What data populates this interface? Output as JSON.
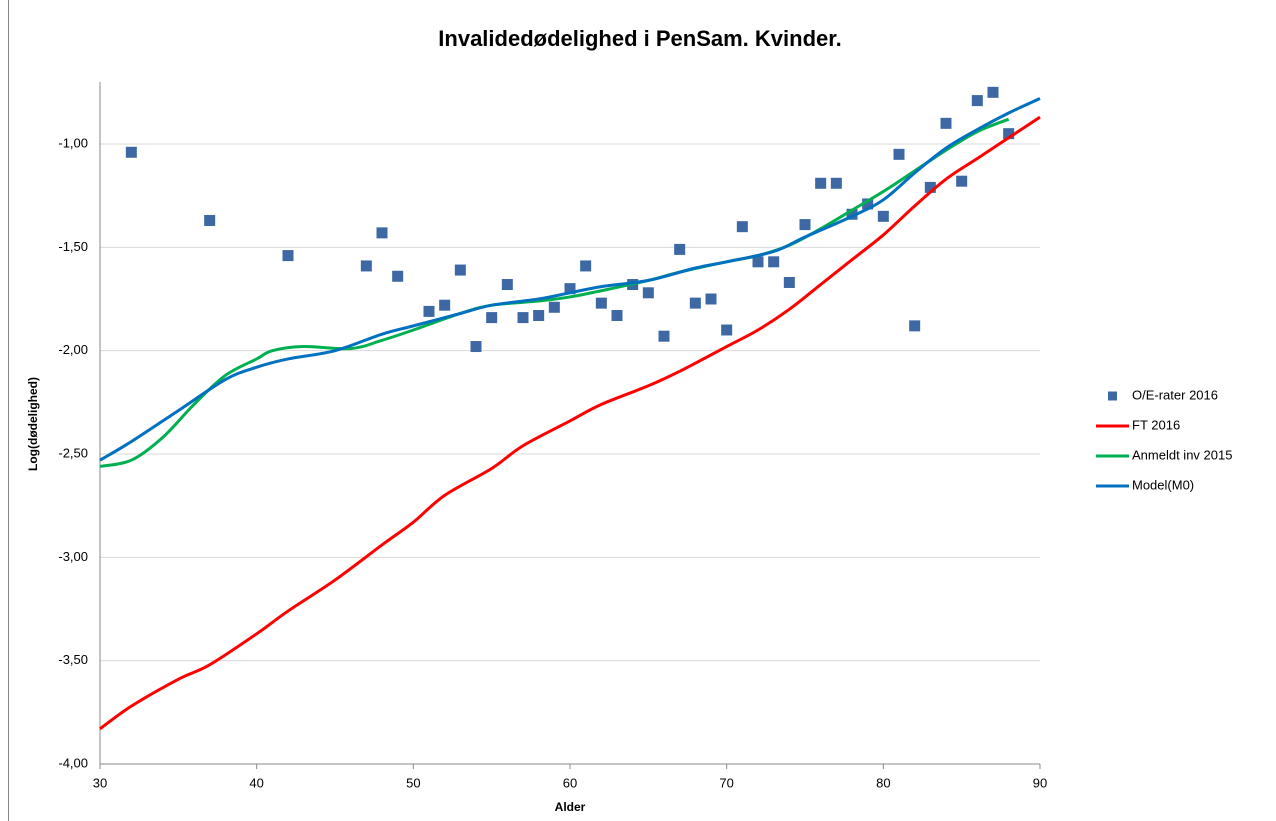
{
  "chart_data": {
    "type": "scatter",
    "title": "Invalidedødelighed i PenSam. Kvinder.",
    "xlabel": "Alder",
    "ylabel": "Log(dødelighed)",
    "xlim": [
      30,
      90
    ],
    "xticks": [
      30,
      40,
      50,
      60,
      70,
      80,
      90
    ],
    "ylim": [
      -4,
      -0.7
    ],
    "yticks": [
      {
        "value": -4,
        "label": "-4,00"
      },
      {
        "value": -3.5,
        "label": "-3,50"
      },
      {
        "value": -3,
        "label": "-3,00"
      },
      {
        "value": -2.5,
        "label": "-2,50"
      },
      {
        "value": -2,
        "label": "-2,00"
      },
      {
        "value": -1.5,
        "label": "-1,50"
      },
      {
        "value": -1,
        "label": "-1,00"
      }
    ],
    "grid": true,
    "legend": "right",
    "series": [
      {
        "name": "O/E-rater 2016",
        "type": "scatter",
        "color": "#3d68a3",
        "x": [
          32,
          37,
          42,
          47,
          48,
          49,
          51,
          52,
          53,
          54,
          55,
          56,
          57,
          58,
          59,
          60,
          61,
          62,
          63,
          64,
          65,
          66,
          67,
          68,
          69,
          70,
          71,
          72,
          73,
          74,
          75,
          76,
          77,
          78,
          79,
          80,
          81,
          82,
          83,
          84,
          85,
          86,
          87,
          88
        ],
        "values": [
          -1.04,
          -1.37,
          -1.54,
          -1.59,
          -1.43,
          -1.64,
          -1.81,
          -1.78,
          -1.61,
          -1.98,
          -1.84,
          -1.68,
          -1.84,
          -1.83,
          -1.79,
          -1.7,
          -1.59,
          -1.77,
          -1.83,
          -1.68,
          -1.72,
          -1.93,
          -1.51,
          -1.77,
          -1.75,
          -1.9,
          -1.4,
          -1.57,
          -1.57,
          -1.67,
          -1.39,
          -1.19,
          -1.19,
          -1.34,
          -1.29,
          -1.35,
          -1.05,
          -1.88,
          -1.21,
          -0.9,
          -1.18,
          -0.79,
          -0.75,
          -0.95
        ]
      },
      {
        "name": "FT 2016",
        "type": "line",
        "color": "#ff0000",
        "x": [
          30,
          32,
          35,
          37,
          40,
          42,
          45,
          48,
          50,
          52,
          55,
          57,
          60,
          62,
          65,
          67,
          70,
          72,
          74,
          76,
          78,
          80,
          82,
          84,
          86,
          88,
          90
        ],
        "values": [
          -3.83,
          -3.72,
          -3.59,
          -3.52,
          -3.37,
          -3.26,
          -3.11,
          -2.94,
          -2.83,
          -2.7,
          -2.57,
          -2.46,
          -2.34,
          -2.26,
          -2.17,
          -2.1,
          -1.98,
          -1.9,
          -1.8,
          -1.68,
          -1.56,
          -1.44,
          -1.3,
          -1.17,
          -1.07,
          -0.97,
          -0.87
        ]
      },
      {
        "name": "Anmeldt inv 2015",
        "type": "line",
        "color": "#00b050",
        "x": [
          30,
          32,
          34,
          36,
          38,
          40,
          41,
          43,
          46,
          48,
          50,
          53,
          55,
          58,
          60,
          62,
          65,
          67,
          70,
          72,
          74,
          76,
          78,
          80,
          82,
          84,
          86,
          88
        ],
        "values": [
          -2.56,
          -2.53,
          -2.42,
          -2.26,
          -2.12,
          -2.04,
          -2.0,
          -1.98,
          -1.99,
          -1.95,
          -1.9,
          -1.82,
          -1.78,
          -1.76,
          -1.74,
          -1.71,
          -1.66,
          -1.62,
          -1.57,
          -1.54,
          -1.49,
          -1.41,
          -1.32,
          -1.23,
          -1.13,
          -1.03,
          -0.94,
          -0.88
        ]
      },
      {
        "name": "Model(M0)",
        "type": "line",
        "color": "#0070c0",
        "x": [
          30,
          32,
          35,
          38,
          40,
          42,
          45,
          48,
          50,
          53,
          55,
          58,
          60,
          62,
          65,
          68,
          70,
          73,
          75,
          78,
          80,
          82,
          84,
          86,
          88,
          90
        ],
        "values": [
          -2.53,
          -2.44,
          -2.29,
          -2.14,
          -2.08,
          -2.04,
          -2.0,
          -1.92,
          -1.88,
          -1.82,
          -1.78,
          -1.75,
          -1.72,
          -1.69,
          -1.66,
          -1.6,
          -1.57,
          -1.52,
          -1.45,
          -1.35,
          -1.27,
          -1.14,
          -1.02,
          -0.93,
          -0.85,
          -0.78
        ]
      }
    ]
  }
}
